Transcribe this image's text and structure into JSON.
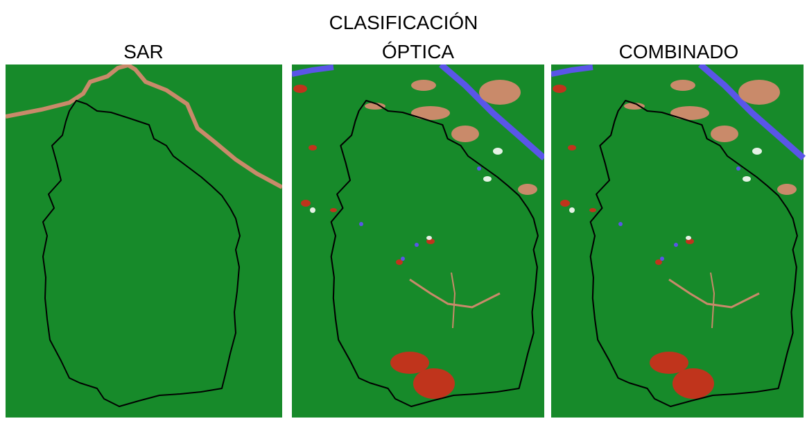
{
  "title": "CLASIFICACIÓN",
  "panels": [
    {
      "label": "SAR"
    },
    {
      "label": "ÓPTICA"
    },
    {
      "label": "COMBINADO"
    }
  ]
}
